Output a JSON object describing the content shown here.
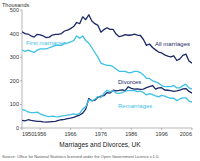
{
  "chart_data": {
    "type": "line",
    "title": "Marriages and Divorces, UK",
    "y_label": "Thousands",
    "source": "Source: Office for National Statistics licensed under the Open Government Licence v.1.0.",
    "x": [
      1950,
      1951,
      1952,
      1953,
      1954,
      1955,
      1956,
      1957,
      1958,
      1959,
      1960,
      1961,
      1962,
      1963,
      1964,
      1965,
      1966,
      1967,
      1968,
      1969,
      1970,
      1971,
      1972,
      1973,
      1974,
      1975,
      1976,
      1977,
      1978,
      1979,
      1980,
      1981,
      1982,
      1983,
      1984,
      1985,
      1986,
      1987,
      1988,
      1989,
      1990,
      1991,
      1992,
      1993,
      1994,
      1995,
      1996,
      1997,
      1998,
      1999,
      2000,
      2001,
      2002,
      2003,
      2004,
      2005,
      2006
    ],
    "xlim": [
      1950,
      2006
    ],
    "xticks": [
      1950,
      1956,
      1966,
      1976,
      1986,
      1996,
      2006
    ],
    "ylim": [
      0,
      500
    ],
    "yticks": [
      0,
      100,
      200,
      300,
      400,
      500
    ],
    "grid": false,
    "series": [
      {
        "name": "All marriages",
        "color": "#1c2a66",
        "values": [
          408,
          400,
          398,
          390,
          385,
          397,
          395,
          390,
          383,
          385,
          394,
          397,
          397,
          400,
          411,
          415,
          421,
          430,
          447,
          442,
          471,
          459,
          480,
          453,
          442,
          435,
          406,
          417,
          425,
          418,
          418,
          398,
          387,
          390,
          396,
          393,
          394,
          398,
          394,
          392,
          375,
          350,
          356,
          341,
          331,
          322,
          318,
          310,
          305,
          301,
          306,
          286,
          293,
          308,
          313,
          284,
          275
        ]
      },
      {
        "name": "First marriages",
        "color": "#3fc0e6",
        "values": [
          330,
          325,
          330,
          325,
          320,
          330,
          335,
          335,
          335,
          340,
          345,
          350,
          350,
          350,
          360,
          360,
          365,
          370,
          390,
          380,
          390,
          370,
          360,
          340,
          320,
          300,
          275,
          270,
          265,
          265,
          260,
          250,
          240,
          240,
          240,
          235,
          235,
          240,
          240,
          235,
          225,
          210,
          210,
          200,
          195,
          190,
          180,
          175,
          175,
          175,
          180,
          170,
          170,
          180,
          185,
          170,
          165
        ]
      },
      {
        "name": "Divorces",
        "color": "#1c2a66",
        "values": [
          32,
          30,
          35,
          32,
          30,
          28,
          28,
          26,
          25,
          26,
          27,
          28,
          32,
          35,
          37,
          40,
          42,
          45,
          50,
          55,
          63,
          80,
          125,
          115,
          118,
          130,
          135,
          137,
          150,
          148,
          160,
          157,
          159,
          162,
          158,
          175,
          168,
          165,
          166,
          164,
          165,
          171,
          175,
          180,
          165,
          170,
          171,
          161,
          160,
          158,
          155,
          157,
          160,
          166,
          167,
          155,
          148
        ]
      },
      {
        "name": "Remarriages",
        "color": "#3fc0e6",
        "values": [
          78,
          75,
          68,
          65,
          65,
          67,
          60,
          55,
          50,
          48,
          50,
          48,
          47,
          50,
          52,
          55,
          57,
          60,
          57,
          62,
          80,
          90,
          120,
          115,
          122,
          133,
          130,
          147,
          160,
          153,
          158,
          148,
          147,
          150,
          156,
          158,
          159,
          158,
          154,
          157,
          150,
          140,
          146,
          141,
          136,
          132,
          138,
          135,
          130,
          126,
          126,
          116,
          123,
          128,
          128,
          114,
          110
        ]
      }
    ]
  }
}
